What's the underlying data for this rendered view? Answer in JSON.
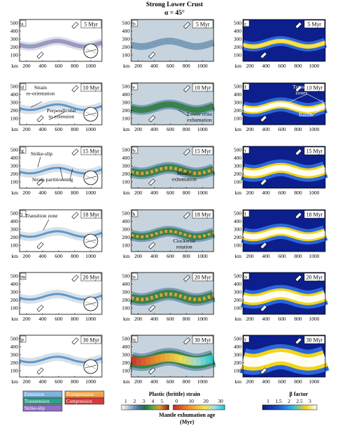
{
  "title": "Strong Lower Crust",
  "subtitle": "α = 45°",
  "unit_label": "km",
  "y_ticks": [
    "500",
    "400",
    "300",
    "200",
    "100"
  ],
  "x_ticks": [
    "200",
    "400",
    "600",
    "800",
    "1000"
  ],
  "columns": [
    {
      "id": "strain-type",
      "letters": [
        "a",
        "d",
        "g",
        "j",
        "m",
        "p"
      ]
    },
    {
      "id": "plastic-strain",
      "letters": [
        "b",
        "e",
        "h",
        "k",
        "n",
        "q"
      ]
    },
    {
      "id": "beta-factor",
      "letters": [
        "c",
        "f",
        "i",
        "l",
        "o",
        "r"
      ]
    }
  ],
  "times": [
    "5 Myr",
    "10 Myr",
    "15 Myr",
    "18 Myr",
    "20 Myr",
    "30 Myr"
  ],
  "annotations": {
    "d": [
      "Strain",
      "re-orientation",
      "Perpendicular",
      "to extension"
    ],
    "e": [
      "Lower crust",
      "exhumation"
    ],
    "f": [
      "Transfer",
      "zones",
      "Basins"
    ],
    "g": [
      "Strike-slip",
      "Strain partitionning"
    ],
    "h": [
      "Mantle",
      "exhumation"
    ],
    "j": [
      "Transition zone"
    ],
    "k": [
      "Clockwise",
      "rotation"
    ]
  },
  "legend_strain_types": [
    {
      "label": "Extension",
      "color": "#7fb2dc"
    },
    {
      "label": "Transpression",
      "color": "#f3a64a"
    },
    {
      "label": "Transtension",
      "color": "#2f9e8a"
    },
    {
      "label": "Compression",
      "color": "#d83a3a"
    },
    {
      "label": "Strike-slip",
      "color": "#8f6fc8"
    }
  ],
  "colorbar_strain": {
    "label": "Plastic (brittle) strain",
    "ticks": [
      "1",
      "2",
      "3",
      "4",
      "5"
    ]
  },
  "colorbar_mantle": {
    "label_line1": "Mantle exhumation age",
    "label_line2": "(Myr)",
    "ticks": [
      "0",
      "10",
      "20",
      "30"
    ]
  },
  "colorbar_beta": {
    "label": "β factor",
    "ticks": [
      "1",
      "1.5",
      "2",
      "2.5",
      "3"
    ]
  },
  "colors": {
    "strain_bg": "#c7d4de",
    "beta_bg": "#0c1f8c",
    "beta_band": "#fff3a0",
    "strain_band": "#3d6f9a"
  }
}
